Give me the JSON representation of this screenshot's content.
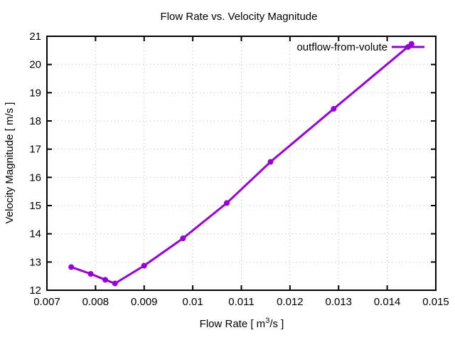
{
  "chart_data": {
    "type": "line",
    "title": "Flow Rate vs. Velocity Magnitude",
    "xlabel_text": "Flow Rate [ m³/s ]",
    "xlabel_parts": {
      "pre": "Flow Rate [ m",
      "sup": "3",
      "post": "/s ]"
    },
    "ylabel": "Velocity Magnitude [ m/s ]",
    "xlim": [
      0.007,
      0.015
    ],
    "ylim": [
      12,
      21
    ],
    "x_ticks": [
      0.007,
      0.008,
      0.009,
      0.01,
      0.011,
      0.012,
      0.013,
      0.014,
      0.015
    ],
    "x_tick_labels": [
      "0.007",
      "0.008",
      "0.009",
      "0.01",
      "0.011",
      "0.012",
      "0.013",
      "0.014",
      "0.015"
    ],
    "y_ticks": [
      12,
      13,
      14,
      15,
      16,
      17,
      18,
      19,
      20,
      21
    ],
    "y_tick_labels": [
      "12",
      "13",
      "14",
      "15",
      "16",
      "17",
      "18",
      "19",
      "20",
      "21"
    ],
    "grid": "dotted",
    "legend": {
      "label": "outflow-from-volute",
      "position": "top-right-inside"
    },
    "series": [
      {
        "name": "outflow-from-volute",
        "color": "#9400d3",
        "style": "linespoints",
        "marker": "filled-circle",
        "points": [
          [
            0.0075,
            12.82
          ],
          [
            0.0079,
            12.58
          ],
          [
            0.0082,
            12.37
          ],
          [
            0.0084,
            12.24
          ],
          [
            0.009,
            12.87
          ],
          [
            0.0098,
            13.84
          ],
          [
            0.0107,
            15.09
          ],
          [
            0.0116,
            16.55
          ],
          [
            0.0129,
            18.43
          ],
          [
            0.0145,
            20.73
          ]
        ]
      }
    ]
  },
  "colors": {
    "line": "#9400d3",
    "grid": "#b8b8b8",
    "border": "#000000",
    "background": "#ffffff",
    "text": "#000000"
  }
}
